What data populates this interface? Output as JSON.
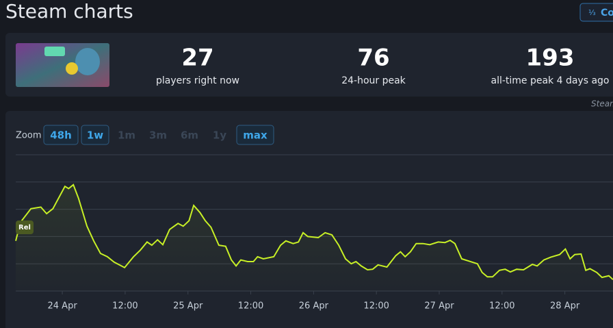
{
  "header": {
    "title": "Steam charts",
    "button": "Co"
  },
  "stats": [
    {
      "value": 27,
      "label": "players right now"
    },
    {
      "value": 76,
      "label": "24-hour peak"
    },
    {
      "value": 193,
      "label": "all-time peak 4 days ago"
    }
  ],
  "source": "Steam",
  "zoom": {
    "label": "Zoom",
    "options": [
      {
        "label": "48h",
        "enabled": true
      },
      {
        "label": "1w",
        "enabled": true
      },
      {
        "label": "1m",
        "enabled": false
      },
      {
        "label": "3m",
        "enabled": false
      },
      {
        "label": "6m",
        "enabled": false
      },
      {
        "label": "1y",
        "enabled": false
      },
      {
        "label": "max",
        "enabled": true
      }
    ]
  },
  "chart_data": {
    "type": "line",
    "x": [
      -8.9,
      -8.0,
      -6.0,
      -4.1,
      -3.0,
      -1.8,
      0.5,
      1.2,
      2.1,
      3.1,
      4.7,
      6.0,
      7.3,
      8.6,
      9.9,
      11.9,
      13.6,
      14.9,
      16.2,
      17.1,
      18.2,
      19.2,
      20.5,
      22.1,
      23.1,
      24.2,
      25.1,
      26.3,
      27.3,
      28.4,
      29.9,
      31.2,
      32.3,
      33.2,
      34.1,
      35.4,
      36.5,
      37.3,
      38.4,
      40.4,
      41.7,
      42.7,
      44.1,
      45.1,
      46.0,
      46.9,
      48.9,
      50.2,
      51.5,
      52.8,
      54.1,
      55.2,
      56.1,
      57.1,
      58.3,
      59.3,
      60.3,
      62.0,
      63.7,
      64.6,
      65.5,
      66.5,
      67.6,
      68.9,
      70.2,
      71.8,
      73.1,
      74.1,
      75.0,
      76.3,
      78.3,
      79.3,
      80.2,
      81.2,
      82.2,
      83.5,
      84.6,
      85.6,
      86.8,
      88.1,
      89.8,
      90.7,
      92.0,
      93.3,
      95.0,
      96.1,
      97.0,
      97.9,
      99.1,
      100.0,
      100.8,
      102.1,
      103.1,
      104.4,
      105.2
    ],
    "series": [
      {
        "name": "Rel",
        "color": "#c8f026",
        "values": [
          92,
          126,
          151,
          154,
          142,
          151,
          192,
          188,
          195,
          170,
          119,
          92,
          69,
          63,
          53,
          43,
          63,
          75,
          90,
          84,
          94,
          85,
          113,
          124,
          119,
          129,
          157,
          144,
          129,
          117,
          84,
          82,
          57,
          46,
          57,
          54,
          54,
          63,
          59,
          63,
          84,
          92,
          87,
          90,
          107,
          100,
          98,
          107,
          103,
          84,
          59,
          50,
          54,
          46,
          39,
          40,
          48,
          44,
          65,
          72,
          63,
          72,
          87,
          87,
          85,
          90,
          89,
          93,
          87,
          59,
          53,
          50,
          34,
          26,
          26,
          38,
          40,
          35,
          40,
          39,
          49,
          46,
          57,
          62,
          67,
          77,
          59,
          67,
          68,
          38,
          41,
          34,
          25,
          28,
          21
        ]
      }
    ],
    "xlim": [
      -8.9,
      105.2
    ],
    "xticks": [
      {
        "value": 0,
        "label": "24 Apr"
      },
      {
        "value": 12,
        "label": "12:00"
      },
      {
        "value": 24,
        "label": "25 Apr"
      },
      {
        "value": 36,
        "label": "12:00"
      },
      {
        "value": 48,
        "label": "26 Apr"
      },
      {
        "value": 60,
        "label": "12:00"
      },
      {
        "value": 72,
        "label": "27 Apr"
      },
      {
        "value": 84,
        "label": "12:00"
      },
      {
        "value": 96,
        "label": "28 Apr"
      }
    ],
    "ylim": [
      0,
      250
    ],
    "ygrid": [
      0,
      50,
      100,
      150,
      200,
      250
    ],
    "grid": true
  }
}
